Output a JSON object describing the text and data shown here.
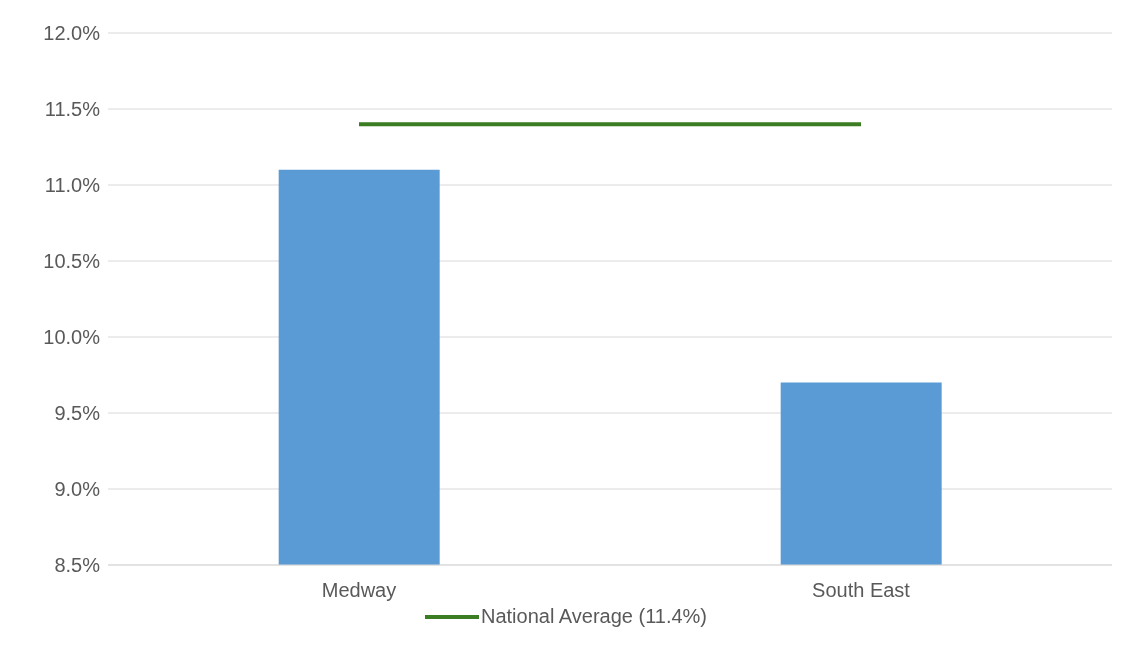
{
  "chart_data": {
    "type": "bar",
    "categories": [
      "Medway",
      "South East"
    ],
    "series": [
      {
        "color": "#5b9bd5",
        "values": [
          11.1,
          9.7
        ]
      },
      {
        "type": "line",
        "name": "National Average (11.4%)",
        "color": "#3a7d22",
        "values": [
          11.4,
          11.4
        ]
      }
    ],
    "ylim": [
      8.5,
      12
    ],
    "yticks": [
      {
        "value": 8.5,
        "label": "8.5%"
      },
      {
        "value": 9.0,
        "label": "9.0%"
      },
      {
        "value": 9.5,
        "label": "9.5%"
      },
      {
        "value": 10.0,
        "label": "10.0%"
      },
      {
        "value": 10.5,
        "label": "10.5%"
      },
      {
        "value": 11.0,
        "label": "11.0%"
      },
      {
        "value": 11.5,
        "label": "11.5%"
      },
      {
        "value": 12.0,
        "label": "12.0%"
      }
    ],
    "grid": "y",
    "legend": "bottom",
    "marker": "none"
  }
}
